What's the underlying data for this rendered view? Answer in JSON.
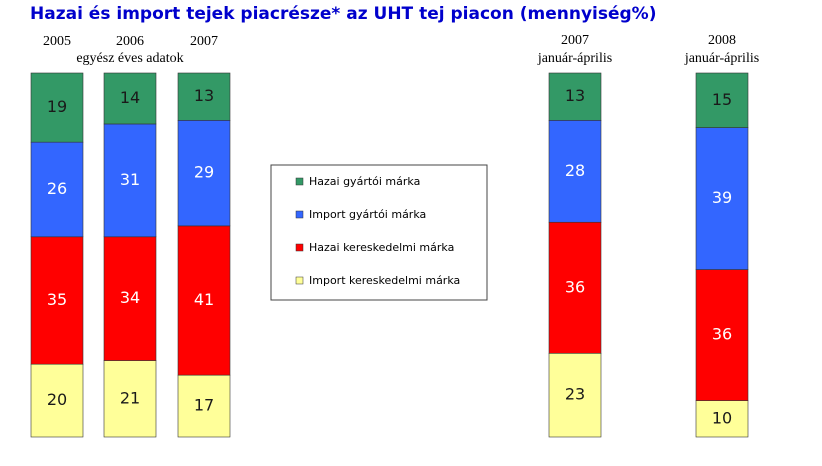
{
  "chart_data": {
    "type": "stacked_bar",
    "title": "Hazai és import tejek piacrésze* az UHT tej piacon (mennyiség%)",
    "annotation": "egyész éves adatok",
    "categories": [
      "2005",
      "2006",
      "2007",
      "2007",
      "2008"
    ],
    "category_sublabels": [
      null,
      null,
      null,
      "január-április",
      "január-április"
    ],
    "series": [
      {
        "name": "Hazai gyártói márka",
        "color": "#339966",
        "label_color": "#1a1a1a",
        "values": [
          19,
          14,
          13,
          13,
          15
        ]
      },
      {
        "name": "Import gyártói márka",
        "color": "#3366ff",
        "label_color": "#ffffff",
        "values": [
          26,
          31,
          29,
          28,
          39
        ]
      },
      {
        "name": "Hazai kereskedelmi márka",
        "color": "#ff0000",
        "label_color": "#ffffff",
        "values": [
          35,
          34,
          41,
          36,
          36
        ]
      },
      {
        "name": "Import kereskedelmi márka",
        "color": "#ffff99",
        "label_color": "#1a1a1a",
        "values": [
          20,
          21,
          17,
          23,
          10
        ]
      }
    ],
    "ylim": [
      0,
      100
    ]
  }
}
